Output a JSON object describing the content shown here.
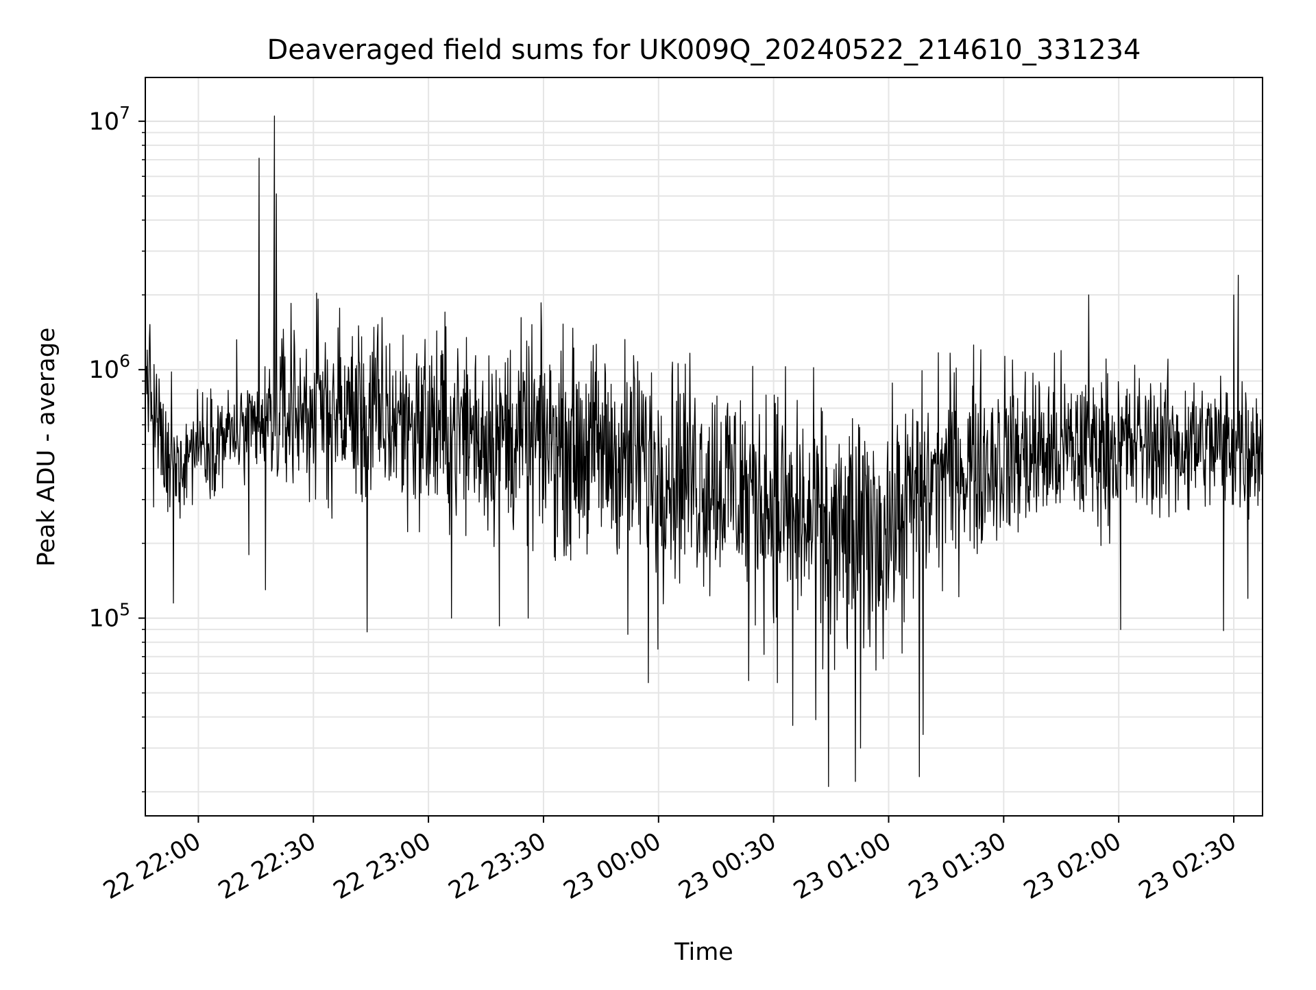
{
  "chart_data": {
    "type": "line",
    "title": "Deaveraged field sums for UK009Q_20240522_214610_331234",
    "xlabel": "Time",
    "ylabel": "Peak ADU - average",
    "yscale": "log",
    "ylim": [
      16000,
      15000000
    ],
    "xlim": [
      "2024-05-22 21:46:10",
      "2024-05-23 02:37:30"
    ],
    "grid": true,
    "line_color": "#000000",
    "x_ticks": [
      {
        "t": "2024-05-22 22:00",
        "label": "22 22:00"
      },
      {
        "t": "2024-05-22 22:30",
        "label": "22 22:30"
      },
      {
        "t": "2024-05-22 23:00",
        "label": "22 23:00"
      },
      {
        "t": "2024-05-22 23:30",
        "label": "22 23:30"
      },
      {
        "t": "2024-05-23 00:00",
        "label": "23 00:00"
      },
      {
        "t": "2024-05-23 00:30",
        "label": "23 00:30"
      },
      {
        "t": "2024-05-23 01:00",
        "label": "23 01:00"
      },
      {
        "t": "2024-05-23 01:30",
        "label": "23 01:30"
      },
      {
        "t": "2024-05-23 02:00",
        "label": "23 02:00"
      },
      {
        "t": "2024-05-23 02:30",
        "label": "23 02:30"
      }
    ],
    "y_ticks": [
      {
        "value": 100000,
        "base": "10",
        "exp": "5"
      },
      {
        "value": 1000000,
        "base": "10",
        "exp": "6"
      },
      {
        "value": 10000000,
        "base": "10",
        "exp": "7"
      }
    ],
    "series": [
      {
        "sample_interval_seconds": 8,
        "anchors": [
          {
            "t": "2024-05-22 21:46:10",
            "level": 1000000,
            "spread": 0.35
          },
          {
            "t": "2024-05-22 21:52:00",
            "level": 380000,
            "spread": 0.35
          },
          {
            "t": "2024-05-22 22:00:00",
            "level": 520000,
            "spread": 0.3
          },
          {
            "t": "2024-05-22 22:15:00",
            "level": 560000,
            "spread": 0.3
          },
          {
            "t": "2024-05-22 22:20:00",
            "level": 650000,
            "spread": 0.45
          },
          {
            "t": "2024-05-22 22:30:00",
            "level": 700000,
            "spread": 0.55
          },
          {
            "t": "2024-05-22 23:30:00",
            "level": 520000,
            "spread": 0.6
          },
          {
            "t": "2024-05-23 00:00:00",
            "level": 430000,
            "spread": 0.65
          },
          {
            "t": "2024-05-23 00:30:00",
            "level": 300000,
            "spread": 0.7
          },
          {
            "t": "2024-05-23 00:45:00",
            "level": 200000,
            "spread": 0.75
          },
          {
            "t": "2024-05-23 01:00:00",
            "level": 230000,
            "spread": 0.7
          },
          {
            "t": "2024-05-23 01:15:00",
            "level": 400000,
            "spread": 0.6
          },
          {
            "t": "2024-05-23 01:30:00",
            "level": 450000,
            "spread": 0.55
          },
          {
            "t": "2024-05-23 02:00:00",
            "level": 500000,
            "spread": 0.45
          },
          {
            "t": "2024-05-23 02:37:30",
            "level": 500000,
            "spread": 0.4
          }
        ],
        "notable_points": [
          {
            "t": "2024-05-22 21:46:10",
            "value": 1050000
          },
          {
            "t": "2024-05-22 21:46:40",
            "value": 1200000
          },
          {
            "t": "2024-05-22 21:48:20",
            "value": 280000
          },
          {
            "t": "2024-05-22 21:53:30",
            "value": 115000
          },
          {
            "t": "2024-05-22 21:53:00",
            "value": 980000
          },
          {
            "t": "2024-05-22 22:10:00",
            "value": 1320000
          },
          {
            "t": "2024-05-22 22:13:10",
            "value": 180000
          },
          {
            "t": "2024-05-22 22:15:50",
            "value": 7100000
          },
          {
            "t": "2024-05-22 22:17:30",
            "value": 130000
          },
          {
            "t": "2024-05-22 22:19:50",
            "value": 10500000
          },
          {
            "t": "2024-05-22 22:20:20",
            "value": 5100000
          },
          {
            "t": "2024-05-22 22:24:10",
            "value": 1850000
          },
          {
            "t": "2024-05-22 22:44:00",
            "value": 88000
          },
          {
            "t": "2024-05-22 23:06:00",
            "value": 100000
          },
          {
            "t": "2024-05-22 23:18:30",
            "value": 93000
          },
          {
            "t": "2024-05-22 23:26:00",
            "value": 100000
          },
          {
            "t": "2024-05-22 23:52:00",
            "value": 86000
          },
          {
            "t": "2024-05-22 23:57:20",
            "value": 55000
          },
          {
            "t": "2024-05-22 23:59:50",
            "value": 75000
          },
          {
            "t": "2024-05-23 00:23:30",
            "value": 56000
          },
          {
            "t": "2024-05-23 00:31:00",
            "value": 55000
          },
          {
            "t": "2024-05-23 00:35:00",
            "value": 37000
          },
          {
            "t": "2024-05-23 00:41:00",
            "value": 39000
          },
          {
            "t": "2024-05-23 00:44:20",
            "value": 21000
          },
          {
            "t": "2024-05-23 00:51:20",
            "value": 22000
          },
          {
            "t": "2024-05-23 00:52:40",
            "value": 30000
          },
          {
            "t": "2024-05-23 01:08:00",
            "value": 23000
          },
          {
            "t": "2024-05-23 01:09:00",
            "value": 34000
          },
          {
            "t": "2024-05-23 01:52:10",
            "value": 2000000
          },
          {
            "t": "2024-05-23 02:00:30",
            "value": 90000
          },
          {
            "t": "2024-05-23 02:27:20",
            "value": 89000
          },
          {
            "t": "2024-05-23 02:30:00",
            "value": 2000000
          },
          {
            "t": "2024-05-23 02:31:10",
            "value": 2400000
          },
          {
            "t": "2024-05-23 02:33:40",
            "value": 120000
          }
        ]
      }
    ]
  }
}
